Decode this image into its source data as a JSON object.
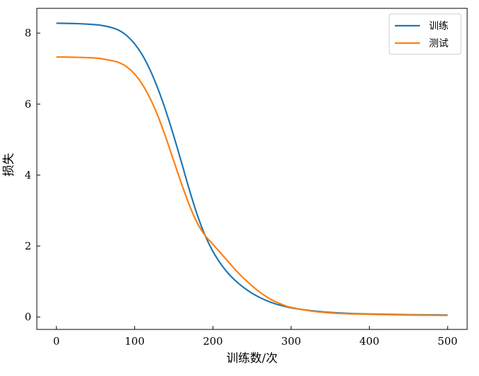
{
  "chart_data": {
    "type": "line",
    "title": "",
    "xlabel": "训练数/次",
    "ylabel": "损失",
    "xlim": [
      -25,
      525
    ],
    "ylim": [
      -0.35,
      8.7
    ],
    "xticks": [
      0,
      100,
      200,
      300,
      400,
      500
    ],
    "yticks": [
      0,
      2,
      4,
      6,
      8
    ],
    "grid": false,
    "legend_position": "top-right",
    "x": [
      0,
      25,
      50,
      60,
      70,
      80,
      90,
      100,
      110,
      120,
      130,
      140,
      150,
      160,
      170,
      180,
      190,
      200,
      210,
      220,
      230,
      240,
      250,
      260,
      270,
      280,
      290,
      300,
      325,
      350,
      375,
      400,
      425,
      450,
      475,
      500
    ],
    "series": [
      {
        "name": "训练",
        "color": "#1f77b4",
        "values": [
          8.28,
          8.27,
          8.24,
          8.21,
          8.16,
          8.08,
          7.93,
          7.7,
          7.38,
          6.95,
          6.42,
          5.8,
          5.1,
          4.35,
          3.58,
          2.88,
          2.3,
          1.85,
          1.5,
          1.22,
          1.0,
          0.82,
          0.67,
          0.55,
          0.45,
          0.37,
          0.31,
          0.26,
          0.18,
          0.13,
          0.1,
          0.085,
          0.075,
          0.065,
          0.06,
          0.055
        ]
      },
      {
        "name": "测试",
        "color": "#ff7f0e",
        "values": [
          7.33,
          7.32,
          7.3,
          7.27,
          7.23,
          7.17,
          7.05,
          6.85,
          6.55,
          6.15,
          5.65,
          5.05,
          4.4,
          3.75,
          3.15,
          2.65,
          2.3,
          2.05,
          1.8,
          1.55,
          1.3,
          1.08,
          0.88,
          0.7,
          0.55,
          0.43,
          0.34,
          0.27,
          0.17,
          0.115,
          0.09,
          0.075,
          0.065,
          0.055,
          0.05,
          0.045
        ]
      }
    ]
  }
}
